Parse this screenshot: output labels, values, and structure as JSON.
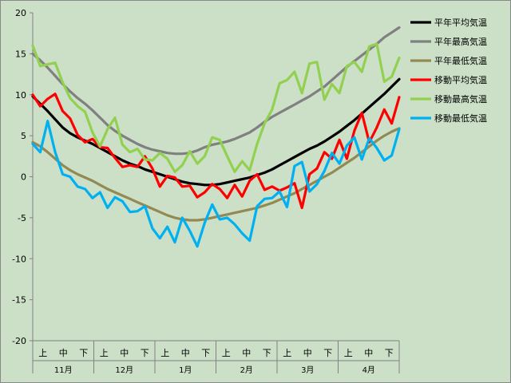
{
  "chart_data": {
    "type": "line",
    "title": "",
    "xlabel": "",
    "ylabel": "",
    "ylim": [
      -20,
      20
    ],
    "yticks": [
      "20",
      "15",
      "10",
      "5",
      "0",
      "-5",
      "-10",
      "-15",
      "-20"
    ],
    "months": [
      "11月",
      "12月",
      "1月",
      "2月",
      "3月",
      "4月"
    ],
    "subperiods": [
      "上",
      "中",
      "下"
    ],
    "grid": false,
    "legend_position": "top-right",
    "background_color": "#cce0c8",
    "points_per_month": 30,
    "series": [
      {
        "name": "平年平均気温",
        "color": "#000000",
        "values": [
          9.8,
          8.9,
          8,
          7,
          6,
          5.3,
          4.8,
          4.4,
          4,
          3.5,
          3,
          2.5,
          2,
          1.6,
          1.3,
          0.9,
          0.6,
          0.3,
          0,
          -0.3,
          -0.6,
          -0.8,
          -0.9,
          -1,
          -1,
          -0.9,
          -0.7,
          -0.5,
          -0.3,
          -0.1,
          0.2,
          0.5,
          0.9,
          1.4,
          1.9,
          2.4,
          2.9,
          3.4,
          3.8,
          4.3,
          4.9,
          5.5,
          6.2,
          6.9,
          7.7,
          8.5,
          9.3,
          10.1,
          11,
          11.9
        ]
      },
      {
        "name": "平年最高気温",
        "color": "#808080",
        "values": [
          15,
          14.2,
          13.3,
          12.3,
          11.3,
          10.4,
          9.6,
          8.9,
          8.1,
          7.2,
          6.3,
          5.6,
          5,
          4.5,
          4,
          3.6,
          3.3,
          3.1,
          2.9,
          2.8,
          2.8,
          2.9,
          3.2,
          3.6,
          3.9,
          4.1,
          4.3,
          4.6,
          5,
          5.4,
          6,
          6.7,
          7.3,
          7.8,
          8.3,
          8.8,
          9.3,
          9.8,
          10.4,
          11,
          11.8,
          12.6,
          13.4,
          14.1,
          14.8,
          15.5,
          16.2,
          17,
          17.6,
          18.2
        ]
      },
      {
        "name": "平年最低気温",
        "color": "#938953",
        "values": [
          4.2,
          3.7,
          3,
          2.2,
          1.4,
          0.8,
          0.3,
          -0.1,
          -0.5,
          -1,
          -1.5,
          -1.9,
          -2.3,
          -2.7,
          -3.1,
          -3.5,
          -3.9,
          -4.3,
          -4.7,
          -5,
          -5.2,
          -5.3,
          -5.3,
          -5.2,
          -5,
          -4.8,
          -4.6,
          -4.4,
          -4.2,
          -4,
          -3.8,
          -3.5,
          -3.2,
          -2.8,
          -2.4,
          -2,
          -1.5,
          -1,
          -0.5,
          0,
          0.5,
          1.1,
          1.7,
          2.3,
          3,
          3.7,
          4.4,
          5,
          5.5,
          5.9
        ]
      },
      {
        "name": "移動平均気温",
        "color": "#ff0000",
        "values": [
          10,
          8.6,
          9.5,
          10.1,
          8,
          7.1,
          5.1,
          4.2,
          4.6,
          3.6,
          3.5,
          2.3,
          1.2,
          1.4,
          1.2,
          2.5,
          1,
          -1.2,
          0.1,
          -0.1,
          -1.2,
          -1.1,
          -2.5,
          -1.9,
          -0.9,
          -1.5,
          -2.6,
          -1,
          -2.4,
          -0.5,
          0.3,
          -1.6,
          -1.2,
          -1.7,
          -1.3,
          -0.8,
          -3.8,
          0.3,
          1,
          3,
          2.2,
          4.5,
          2.2,
          5.6,
          7.8,
          4.2,
          6,
          8.2,
          6.5,
          9.7
        ]
      },
      {
        "name": "移動最高気温",
        "color": "#92d050",
        "values": [
          16,
          13.5,
          13.7,
          13.9,
          11.5,
          9.6,
          8.6,
          7.9,
          5.4,
          3.7,
          5.8,
          7.2,
          3.9,
          3,
          3.4,
          2.1,
          2,
          2.9,
          2.2,
          0.6,
          1.4,
          3.1,
          1.6,
          2.5,
          4.8,
          4.5,
          2.5,
          0.6,
          1.9,
          0.8,
          4,
          6.5,
          8.2,
          11.4,
          11.8,
          12.8,
          10.2,
          13.8,
          14,
          9.4,
          11.3,
          10.2,
          13.5,
          14,
          12.8,
          15.9,
          16.2,
          11.6,
          12.2,
          14.5
        ]
      },
      {
        "name": "移動最低気温",
        "color": "#00b0f0",
        "values": [
          4,
          3,
          6.8,
          3,
          0.3,
          0,
          -1.2,
          -1.5,
          -2.6,
          -1.9,
          -3.8,
          -2.5,
          -3,
          -4.3,
          -4.2,
          -3.6,
          -6.3,
          -7.5,
          -6.1,
          -8,
          -5,
          -6.6,
          -8.5,
          -5.6,
          -3.4,
          -5.2,
          -5,
          -5.8,
          -6.9,
          -7.8,
          -3.6,
          -2.7,
          -2.6,
          -1.8,
          -3.7,
          1.3,
          1.8,
          -1.8,
          -0.9,
          0.7,
          2.9,
          1.6,
          3.8,
          4.8,
          2.1,
          4.7,
          3.5,
          2,
          2.6,
          5.8
        ]
      }
    ]
  }
}
